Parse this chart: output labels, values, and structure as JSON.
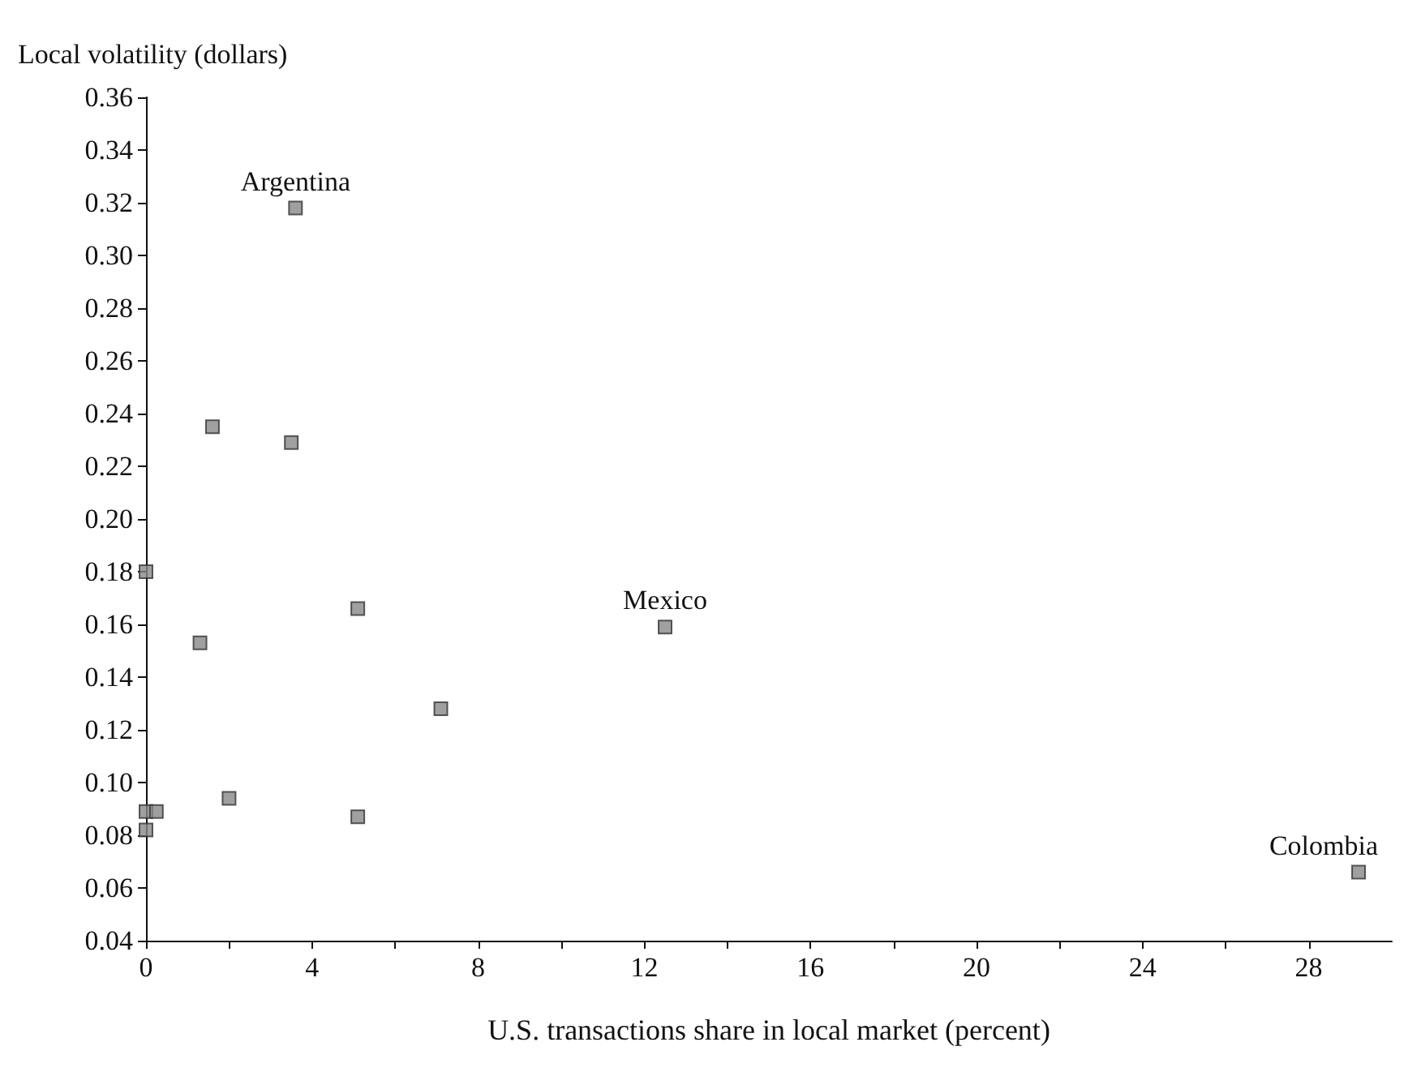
{
  "chart_data": {
    "type": "scatter",
    "xlabel": "U.S. transactions share in local market (percent)",
    "ylabel": "Local volatility (dollars)",
    "x": [
      3.6,
      1.6,
      3.5,
      0,
      1.3,
      5.1,
      7.1,
      2.0,
      5.1,
      0,
      0.25,
      0,
      12.5,
      29.2
    ],
    "values": [
      0.318,
      0.235,
      0.229,
      0.18,
      0.153,
      0.166,
      0.128,
      0.094,
      0.087,
      0.089,
      0.089,
      0.082,
      0.159,
      0.066
    ],
    "color": "#888888",
    "marker": "square",
    "xlim": [
      0,
      30
    ],
    "xticks": [
      0,
      {
        "value": 2,
        "label": null
      },
      4,
      {
        "value": 6,
        "label": null
      },
      8,
      {
        "value": 10,
        "label": null
      },
      12,
      {
        "value": 14,
        "label": null
      },
      16,
      {
        "value": 18,
        "label": null
      },
      20,
      {
        "value": 22,
        "label": null
      },
      24,
      {
        "value": 26,
        "label": null
      },
      28
    ],
    "ylim": [
      0.04,
      0.36
    ],
    "yticks": [
      {
        "value": 0.04,
        "label": "0.04"
      },
      {
        "value": 0.06,
        "label": "0.06"
      },
      {
        "value": 0.08,
        "label": "0.08"
      },
      {
        "value": 0.1,
        "label": "0.10"
      },
      {
        "value": 0.12,
        "label": "0.12"
      },
      {
        "value": 0.14,
        "label": "0.14"
      },
      {
        "value": 0.16,
        "label": "0.16"
      },
      {
        "value": 0.18,
        "label": "0.18"
      },
      {
        "value": 0.2,
        "label": "0.20"
      },
      {
        "value": 0.22,
        "label": "0.22"
      },
      {
        "value": 0.24,
        "label": "0.24"
      },
      {
        "value": 0.26,
        "label": "0.26"
      },
      {
        "value": 0.28,
        "label": "0.28"
      },
      {
        "value": 0.3,
        "label": "0.30"
      },
      {
        "value": 0.32,
        "label": "0.32"
      },
      {
        "value": 0.34,
        "label": "0.34"
      },
      {
        "value": 0.36,
        "label": "0.36"
      }
    ],
    "annotations": [
      {
        "text": "Argentina",
        "x": 3.6,
        "y": 0.318
      },
      {
        "text": "Mexico",
        "x": 12.5,
        "y": 0.159
      },
      {
        "text": "Colombia",
        "x": 29.2,
        "y": 0.066
      }
    ],
    "grid": false
  }
}
